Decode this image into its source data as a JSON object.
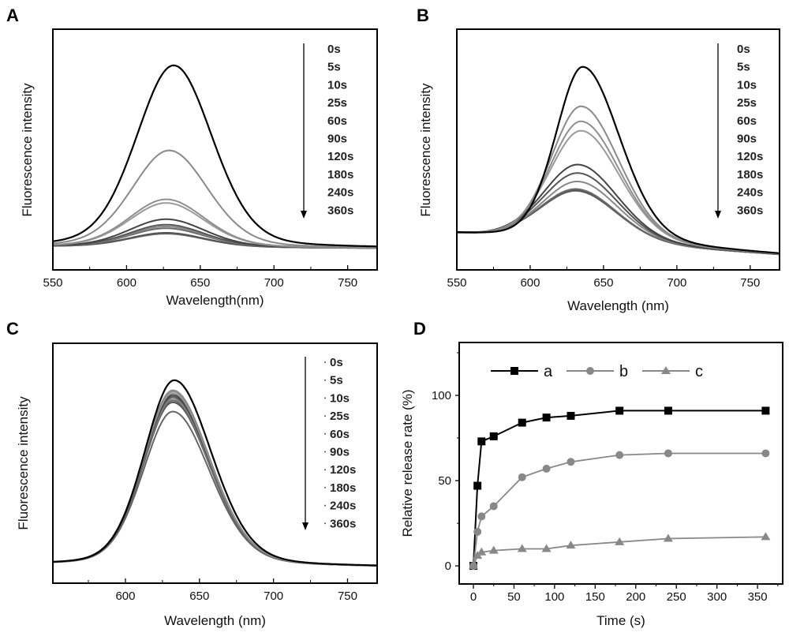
{
  "chart_data": [
    {
      "panel": "A",
      "type": "line",
      "title": "",
      "xlabel": "Wavelength(nm)",
      "ylabel": "Fluorescence intensity",
      "xlim": [
        550,
        770
      ],
      "ylim": [
        -0.13,
        1.2
      ],
      "xticks": [
        550,
        600,
        650,
        700,
        750
      ],
      "yticks": [],
      "grid": false,
      "legend": {
        "placement": "top-right",
        "arrow": "down"
      },
      "series": [
        {
          "name": "0s",
          "peak_nm": 632,
          "peak_intensity": 1.0,
          "color": "#000000"
        },
        {
          "name": "5s",
          "peak_nm": 629,
          "peak_intensity": 0.53,
          "color": "#8a8a8a"
        },
        {
          "name": "10s",
          "peak_nm": 627,
          "peak_intensity": 0.26,
          "color": "#8f8f8f"
        },
        {
          "name": "25s",
          "peak_nm": 627,
          "peak_intensity": 0.24,
          "color": "#9a9a9a"
        },
        {
          "name": "60s",
          "peak_nm": 627,
          "peak_intensity": 0.15,
          "color": "#444444"
        },
        {
          "name": "90s",
          "peak_nm": 627,
          "peak_intensity": 0.12,
          "color": "#555555"
        },
        {
          "name": "120s",
          "peak_nm": 627,
          "peak_intensity": 0.11,
          "color": "#888888"
        },
        {
          "name": "180s",
          "peak_nm": 627,
          "peak_intensity": 0.1,
          "color": "#6a6a6a"
        },
        {
          "name": "240s",
          "peak_nm": 627,
          "peak_intensity": 0.075,
          "color": "#555555"
        },
        {
          "name": "360s",
          "peak_nm": 627,
          "peak_intensity": 0.07,
          "color": "#666666"
        }
      ]
    },
    {
      "panel": "B",
      "type": "line",
      "title": "",
      "xlabel": "Wavelength (nm)",
      "ylabel": "Fluorescence intensity",
      "xlim": [
        550,
        770
      ],
      "ylim": [
        -0.08,
        1.2
      ],
      "xticks": [
        550,
        600,
        650,
        700,
        750
      ],
      "yticks": [],
      "grid": false,
      "legend": {
        "placement": "top-right",
        "arrow": "down"
      },
      "series": [
        {
          "name": "0s",
          "peak_nm": 636,
          "peak_intensity": 1.0,
          "color": "#000000"
        },
        {
          "name": "5s",
          "peak_nm": 635,
          "peak_intensity": 0.79,
          "color": "#8a8a8a"
        },
        {
          "name": "10s",
          "peak_nm": 635,
          "peak_intensity": 0.71,
          "color": "#8f8f8f"
        },
        {
          "name": "25s",
          "peak_nm": 635,
          "peak_intensity": 0.66,
          "color": "#9a9a9a"
        },
        {
          "name": "60s",
          "peak_nm": 633,
          "peak_intensity": 0.48,
          "color": "#444444"
        },
        {
          "name": "90s",
          "peak_nm": 633,
          "peak_intensity": 0.435,
          "color": "#555555"
        },
        {
          "name": "120s",
          "peak_nm": 633,
          "peak_intensity": 0.39,
          "color": "#888888"
        },
        {
          "name": "180s",
          "peak_nm": 632,
          "peak_intensity": 0.35,
          "color": "#6a6a6a"
        },
        {
          "name": "240s",
          "peak_nm": 632,
          "peak_intensity": 0.345,
          "color": "#555555"
        },
        {
          "name": "360s",
          "peak_nm": 632,
          "peak_intensity": 0.34,
          "color": "#666666"
        }
      ]
    },
    {
      "panel": "C",
      "type": "line",
      "title": "",
      "xlabel": "Wavelength (nm)",
      "ylabel": "Fluorescence intensity",
      "xlim": [
        551,
        770
      ],
      "ylim": [
        -0.1,
        1.2
      ],
      "xticks": [
        600,
        650,
        700,
        750
      ],
      "yticks": [],
      "grid": false,
      "legend": {
        "placement": "top-right",
        "arrow": "down"
      },
      "series": [
        {
          "name": "0s",
          "peak_nm": 633,
          "peak_intensity": 1.0,
          "color": "#000000"
        },
        {
          "name": "5s",
          "peak_nm": 632,
          "peak_intensity": 0.945,
          "color": "#8a8a8a"
        },
        {
          "name": "10s",
          "peak_nm": 632,
          "peak_intensity": 0.94,
          "color": "#8f8f8f"
        },
        {
          "name": "25s",
          "peak_nm": 632,
          "peak_intensity": 0.93,
          "color": "#9a9a9a"
        },
        {
          "name": "60s",
          "peak_nm": 632,
          "peak_intensity": 0.92,
          "color": "#444444"
        },
        {
          "name": "90s",
          "peak_nm": 632,
          "peak_intensity": 0.91,
          "color": "#555555"
        },
        {
          "name": "120s",
          "peak_nm": 632,
          "peak_intensity": 0.9,
          "color": "#888888"
        },
        {
          "name": "180s",
          "peak_nm": 632,
          "peak_intensity": 0.89,
          "color": "#6a6a6a"
        },
        {
          "name": "240s",
          "peak_nm": 632,
          "peak_intensity": 0.88,
          "color": "#555555"
        },
        {
          "name": "360s",
          "peak_nm": 632,
          "peak_intensity": 0.83,
          "color": "#666666"
        }
      ]
    },
    {
      "panel": "D",
      "type": "line",
      "title": "",
      "xlabel": "Time (s)",
      "ylabel": "Relative release rate (%)",
      "xlim": [
        -17.5,
        381
      ],
      "ylim": [
        -10.6,
        131
      ],
      "xticks": [
        0,
        50,
        100,
        150,
        200,
        250,
        300,
        350
      ],
      "yticks": [
        0,
        50,
        100
      ],
      "grid": false,
      "legend": {
        "placement": "top"
      },
      "x": [
        0,
        5,
        10,
        25,
        60,
        90,
        120,
        180,
        240,
        360
      ],
      "series": [
        {
          "name": "a",
          "marker": "square",
          "color": "#000000",
          "values": [
            0,
            47,
            73,
            76,
            84,
            87,
            88,
            91,
            91,
            91
          ]
        },
        {
          "name": "b",
          "marker": "circle",
          "color": "#888888",
          "values": [
            0,
            20,
            29,
            35,
            52,
            57,
            61,
            65,
            66,
            66
          ]
        },
        {
          "name": "c",
          "marker": "triangle",
          "color": "#888888",
          "values": [
            0,
            6,
            8,
            9,
            10,
            10,
            12,
            14,
            16,
            17
          ]
        }
      ]
    }
  ]
}
